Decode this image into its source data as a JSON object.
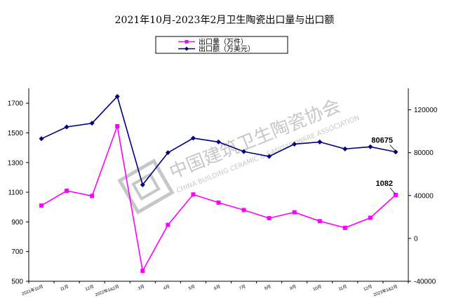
{
  "chart_data": {
    "type": "line",
    "title": "2021年10月-2023年2月卫生陶瓷出口量与出口额",
    "categories": [
      "2021年10月",
      "11月",
      "12月",
      "2022年1&2月",
      "3月",
      "4月",
      "5月",
      "6月",
      "7月",
      "8月",
      "9月",
      "10月",
      "11月",
      "12月",
      "2023年1&2月"
    ],
    "series": [
      {
        "name": "出口量（万件）",
        "axis": "left",
        "color": "#ff00ff",
        "marker": "square",
        "values": [
          1010,
          1110,
          1075,
          1545,
          570,
          880,
          1085,
          1030,
          980,
          925,
          965,
          905,
          860,
          928,
          1082
        ]
      },
      {
        "name": "出口额（万美元）",
        "axis": "right",
        "color": "#000080",
        "marker": "diamond",
        "values": [
          93000,
          104000,
          107500,
          132500,
          50000,
          80000,
          93500,
          90000,
          81000,
          76500,
          88000,
          90000,
          83500,
          85500,
          80675
        ]
      }
    ],
    "ylim_left": [
      500,
      1800
    ],
    "yticks_left": [
      "500",
      "700",
      "900",
      "1100",
      "1300",
      "1500",
      "1700"
    ],
    "ylim_right": [
      -40000,
      140000
    ],
    "yticks_right": [
      "-40000",
      "0",
      "40000",
      "80000",
      "120000"
    ],
    "data_labels": [
      {
        "series": 0,
        "index": 14,
        "text": "1082"
      },
      {
        "series": 1,
        "index": 14,
        "text": "80675"
      }
    ],
    "legend_position": "top-center",
    "grid": false
  },
  "watermark": {
    "cn": "中国建筑卫生陶瓷协会",
    "en": "CHINA BUILDING CERAMIC & SANITARYWARE ASSOCIATION"
  }
}
